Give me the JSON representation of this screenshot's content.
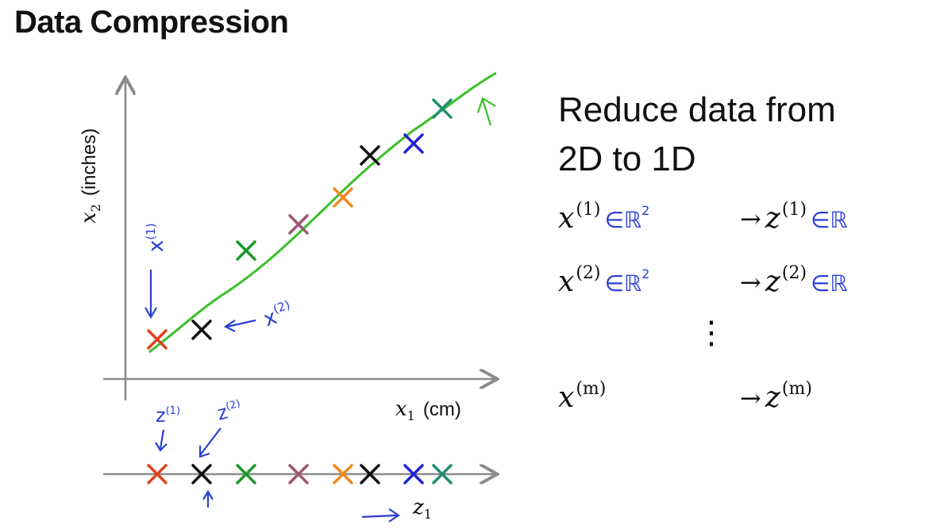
{
  "slide": {
    "title": "Data Compression",
    "heading_line1": "Reduce data from",
    "heading_line2": "2D to 1D"
  },
  "plot": {
    "xlabel_var": "x",
    "xlabel_sub": "1",
    "xlabel_unit": "(cm)",
    "ylabel_var": "x",
    "ylabel_sub": "2",
    "ylabel_unit": "(inches)",
    "z_axis_var": "z",
    "z_axis_sub": "1",
    "colors": {
      "axis": "#8a8a8a",
      "fit_line": "#3cbf2b",
      "annotation": "#2a3fd6",
      "red": "#e0401d",
      "black": "#111111",
      "green": "#1a9a2a",
      "mauve": "#9a5872",
      "orange": "#f28a1e",
      "blue": "#2222d8",
      "teal": "#1f8f72"
    },
    "annotations": {
      "x1_label": "x",
      "x1_sup": "(1)",
      "x2_label": "x",
      "x2_sup": "(2)",
      "z1_label": "z",
      "z1_sup": "(1)",
      "z2_label": "z",
      "z2_sup": "(2)"
    }
  },
  "mappings": [
    {
      "lhs": "x",
      "lhs_sup": "(1)",
      "lhs_set": "∈ℝ",
      "lhs_set_sup": "2",
      "rhs": "z",
      "rhs_sup": "(1)",
      "rhs_set": "∈ℝ"
    },
    {
      "lhs": "x",
      "lhs_sup": "(2)",
      "lhs_set": "∈ℝ",
      "lhs_set_sup": "2",
      "rhs": "z",
      "rhs_sup": "(2)",
      "rhs_set": "∈ℝ"
    },
    {
      "lhs": "x",
      "lhs_sup": "(m)",
      "lhs_set": "",
      "lhs_set_sup": "",
      "rhs": "z",
      "rhs_sup": "(m)",
      "rhs_set": ""
    }
  ],
  "arrow_symbol": "→",
  "vdots": "⋮"
}
